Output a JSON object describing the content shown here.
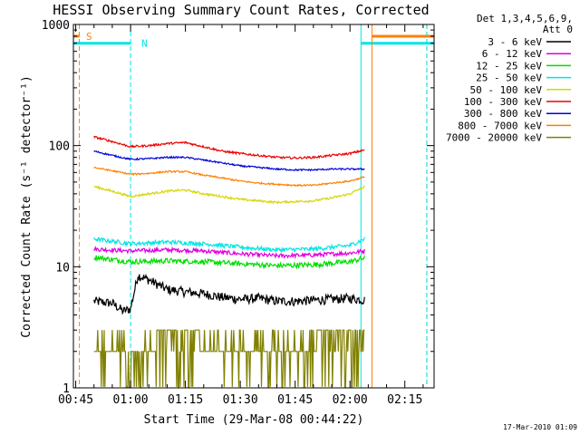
{
  "chart_data": {
    "type": "line",
    "title": "HESSI Observing Summary Count Rates, Corrected",
    "xlabel": "Start Time (29-Mar-08 00:44:22)",
    "ylabel": "Corrected Count Rate (s⁻¹ detector⁻¹)",
    "x_unit": "UT time",
    "xlim": [
      "00:44:22",
      "02:23:00"
    ],
    "x_ticks": [
      "00:45",
      "01:00",
      "01:15",
      "01:30",
      "01:45",
      "02:00",
      "02:15"
    ],
    "y_scale": "log",
    "ylim": [
      1,
      1000
    ],
    "y_ticks": [
      "1",
      "10",
      "100",
      "1000"
    ],
    "grid": false,
    "legend_header": [
      "Det 1,3,4,5,6,9,",
      "Att 0"
    ],
    "legend_position": "right",
    "timestamp": "17-Mar-2010 01:09",
    "data_window": [
      "00:50",
      "02:04"
    ],
    "flags": [
      {
        "label": "S",
        "color": "#ff8000",
        "start": "00:44:22",
        "end": "00:46",
        "level": 800
      },
      {
        "label": "N",
        "color": "#00e5e5",
        "start": "00:44:22",
        "end": "01:00",
        "level": 700
      },
      {
        "label": "",
        "color": "#ff8000",
        "start": "02:06",
        "end": "02:23",
        "level": 800
      },
      {
        "label": "",
        "color": "#00e5e5",
        "start": "02:03",
        "end": "02:23",
        "level": 700
      }
    ],
    "event_lines": [
      {
        "time": "00:46",
        "color": "#ff8000",
        "style": "dashed"
      },
      {
        "time": "01:00",
        "color": "#00e5e5",
        "style": "dashed"
      },
      {
        "time": "02:03",
        "color": "#00e5e5",
        "style": "solid"
      },
      {
        "time": "02:06",
        "color": "#ff8000",
        "style": "solid"
      },
      {
        "time": "02:21",
        "color": "#ff8000",
        "style": "dashed"
      },
      {
        "time": "02:21",
        "color": "#00e5e5",
        "style": "dashed"
      }
    ],
    "series": [
      {
        "name": "3 - 6 keV",
        "color": "#000000",
        "noise": 0.09,
        "points": [
          [
            "00:50",
            5.2
          ],
          [
            "00:55",
            5.0
          ],
          [
            "00:58",
            4.3
          ],
          [
            "01:00",
            4.5
          ],
          [
            "01:02",
            8.5
          ],
          [
            "01:05",
            7.8
          ],
          [
            "01:10",
            6.5
          ],
          [
            "01:15",
            6.2
          ],
          [
            "01:20",
            6.0
          ],
          [
            "01:25",
            5.6
          ],
          [
            "01:30",
            5.4
          ],
          [
            "01:35",
            5.5
          ],
          [
            "01:40",
            5.2
          ],
          [
            "01:45",
            5.2
          ],
          [
            "01:50",
            5.3
          ],
          [
            "01:55",
            5.4
          ],
          [
            "02:00",
            5.5
          ],
          [
            "02:04",
            5.3
          ]
        ]
      },
      {
        "name": "6 - 12 keV",
        "color": "#e000e0",
        "noise": 0.04,
        "points": [
          [
            "00:50",
            14.0
          ],
          [
            "01:00",
            13.5
          ],
          [
            "01:10",
            13.8
          ],
          [
            "01:20",
            13.5
          ],
          [
            "01:30",
            12.8
          ],
          [
            "01:40",
            12.3
          ],
          [
            "01:50",
            12.5
          ],
          [
            "02:00",
            13.0
          ],
          [
            "02:04",
            13.5
          ]
        ]
      },
      {
        "name": "12 - 25 keV",
        "color": "#00dd00",
        "noise": 0.05,
        "points": [
          [
            "00:50",
            12.0
          ],
          [
            "01:00",
            11.0
          ],
          [
            "01:10",
            11.2
          ],
          [
            "01:20",
            11.0
          ],
          [
            "01:30",
            10.6
          ],
          [
            "01:40",
            10.2
          ],
          [
            "01:50",
            10.4
          ],
          [
            "02:00",
            11.0
          ],
          [
            "02:04",
            11.8
          ]
        ]
      },
      {
        "name": "25 - 50 keV",
        "color": "#00e5e5",
        "noise": 0.04,
        "points": [
          [
            "00:50",
            17.0
          ],
          [
            "01:00",
            15.5
          ],
          [
            "01:10",
            16.0
          ],
          [
            "01:20",
            15.5
          ],
          [
            "01:30",
            14.5
          ],
          [
            "01:40",
            13.8
          ],
          [
            "01:50",
            14.0
          ],
          [
            "02:00",
            15.0
          ],
          [
            "02:04",
            17.0
          ]
        ]
      },
      {
        "name": "50 - 100 keV",
        "color": "#d6d600",
        "noise": 0.02,
        "points": [
          [
            "00:50",
            46.0
          ],
          [
            "00:55",
            42.0
          ],
          [
            "01:00",
            38.0
          ],
          [
            "01:05",
            40.0
          ],
          [
            "01:10",
            42.0
          ],
          [
            "01:15",
            43.0
          ],
          [
            "01:20",
            40.0
          ],
          [
            "01:25",
            38.0
          ],
          [
            "01:30",
            36.0
          ],
          [
            "01:35",
            35.0
          ],
          [
            "01:40",
            34.0
          ],
          [
            "01:45",
            34.5
          ],
          [
            "01:50",
            35.0
          ],
          [
            "01:55",
            37.0
          ],
          [
            "02:00",
            40.0
          ],
          [
            "02:04",
            46.0
          ]
        ]
      },
      {
        "name": "100 - 300 keV",
        "color": "#ee0000",
        "noise": 0.02,
        "points": [
          [
            "00:50",
            118.0
          ],
          [
            "00:55",
            108.0
          ],
          [
            "01:00",
            98.0
          ],
          [
            "01:05",
            100.0
          ],
          [
            "01:10",
            104.0
          ],
          [
            "01:15",
            106.0
          ],
          [
            "01:20",
            98.0
          ],
          [
            "01:25",
            90.0
          ],
          [
            "01:30",
            86.0
          ],
          [
            "01:35",
            83.0
          ],
          [
            "01:40",
            80.0
          ],
          [
            "01:45",
            79.0
          ],
          [
            "01:50",
            80.0
          ],
          [
            "01:55",
            83.0
          ],
          [
            "02:00",
            86.0
          ],
          [
            "02:04",
            92.0
          ]
        ]
      },
      {
        "name": "300 - 800 keV",
        "color": "#0000dd",
        "noise": 0.015,
        "points": [
          [
            "00:50",
            90.0
          ],
          [
            "00:55",
            83.0
          ],
          [
            "01:00",
            77.0
          ],
          [
            "01:05",
            78.0
          ],
          [
            "01:10",
            80.0
          ],
          [
            "01:15",
            80.0
          ],
          [
            "01:20",
            76.0
          ],
          [
            "01:25",
            72.0
          ],
          [
            "01:30",
            68.0
          ],
          [
            "01:35",
            66.0
          ],
          [
            "01:40",
            64.0
          ],
          [
            "01:45",
            63.0
          ],
          [
            "01:50",
            63.0
          ],
          [
            "01:55",
            64.0
          ],
          [
            "02:00",
            64.0
          ],
          [
            "02:04",
            64.0
          ]
        ]
      },
      {
        "name": "800 - 7000 keV",
        "color": "#ff8000",
        "noise": 0.015,
        "points": [
          [
            "00:50",
            66.0
          ],
          [
            "00:55",
            62.0
          ],
          [
            "01:00",
            58.0
          ],
          [
            "01:05",
            59.0
          ],
          [
            "01:10",
            61.0
          ],
          [
            "01:15",
            61.0
          ],
          [
            "01:20",
            57.0
          ],
          [
            "01:25",
            54.0
          ],
          [
            "01:30",
            51.0
          ],
          [
            "01:35",
            49.0
          ],
          [
            "01:40",
            48.0
          ],
          [
            "01:45",
            47.0
          ],
          [
            "01:50",
            47.0
          ],
          [
            "01:55",
            49.0
          ],
          [
            "02:00",
            51.0
          ],
          [
            "02:04",
            55.0
          ]
        ]
      },
      {
        "name": "7000 - 20000 keV",
        "color": "#808000",
        "noise": 0.0,
        "quantized": true,
        "points": [
          [
            "00:50",
            2.0
          ],
          [
            "00:58",
            1.7
          ],
          [
            "01:00",
            2.0
          ],
          [
            "01:05",
            2.3
          ],
          [
            "01:12",
            3.0
          ],
          [
            "01:18",
            2.6
          ],
          [
            "01:25",
            2.0
          ],
          [
            "01:30",
            1.6
          ],
          [
            "01:40",
            2.0
          ],
          [
            "01:48",
            2.3
          ],
          [
            "01:55",
            2.8
          ],
          [
            "02:04",
            3.0
          ]
        ]
      }
    ]
  }
}
